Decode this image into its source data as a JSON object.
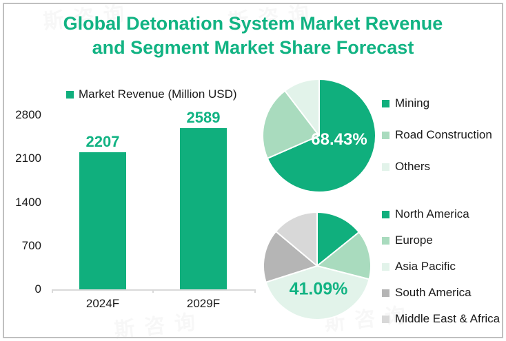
{
  "title": {
    "line1": "Global Detonation System Market Revenue",
    "line2": "and Segment Market Share Forecast"
  },
  "colors": {
    "accent_green": "#12B383",
    "bar_green": "#10AF7D",
    "medium_green": "#A9DBBE",
    "pale_green": "#E2F3EA",
    "dark_gray": "#B5B5B5",
    "light_gray": "#D8D8D8",
    "text": "#1A1A1A",
    "axis_line": "#D9D9D9",
    "border": "#C0C0C0",
    "callout_white": "#FFFFFF"
  },
  "chart_data": [
    {
      "type": "bar",
      "legend": "Market Revenue (Million USD)",
      "categories": [
        "2024F",
        "2029F"
      ],
      "values": [
        2207,
        2589
      ],
      "value_labels": [
        "2207",
        "2589"
      ],
      "ylim": [
        0,
        2800
      ],
      "yticks": [
        0,
        700,
        1400,
        2100,
        2800
      ],
      "bar_color": "#10AF7D"
    },
    {
      "type": "pie",
      "name": "segment-market-share",
      "slices": [
        {
          "label": "Mining",
          "value": 68.43,
          "color": "#10AF7D"
        },
        {
          "label": "Road Construction",
          "value": 21.2,
          "color": "#A9DBBE"
        },
        {
          "label": "Others",
          "value": 10.37,
          "color": "#E2F3EA"
        }
      ],
      "callout": {
        "text": "68.43%",
        "color": "#FFFFFF"
      },
      "legend_position": "right"
    },
    {
      "type": "pie",
      "name": "regional-market-share",
      "slices": [
        {
          "label": "North America",
          "value": 14.2,
          "color": "#10AF7D"
        },
        {
          "label": "Europe",
          "value": 14.8,
          "color": "#A9DBBE"
        },
        {
          "label": "Asia Pacific",
          "value": 41.09,
          "color": "#E2F3EA"
        },
        {
          "label": "South America",
          "value": 16.0,
          "color": "#B5B5B5"
        },
        {
          "label": "Middle East & Africa",
          "value": 13.91,
          "color": "#D8D8D8"
        }
      ],
      "callout": {
        "text": "41.09%",
        "color": "#12B383"
      },
      "legend_position": "right"
    }
  ],
  "watermark": {
    "text": "斯咨询"
  }
}
